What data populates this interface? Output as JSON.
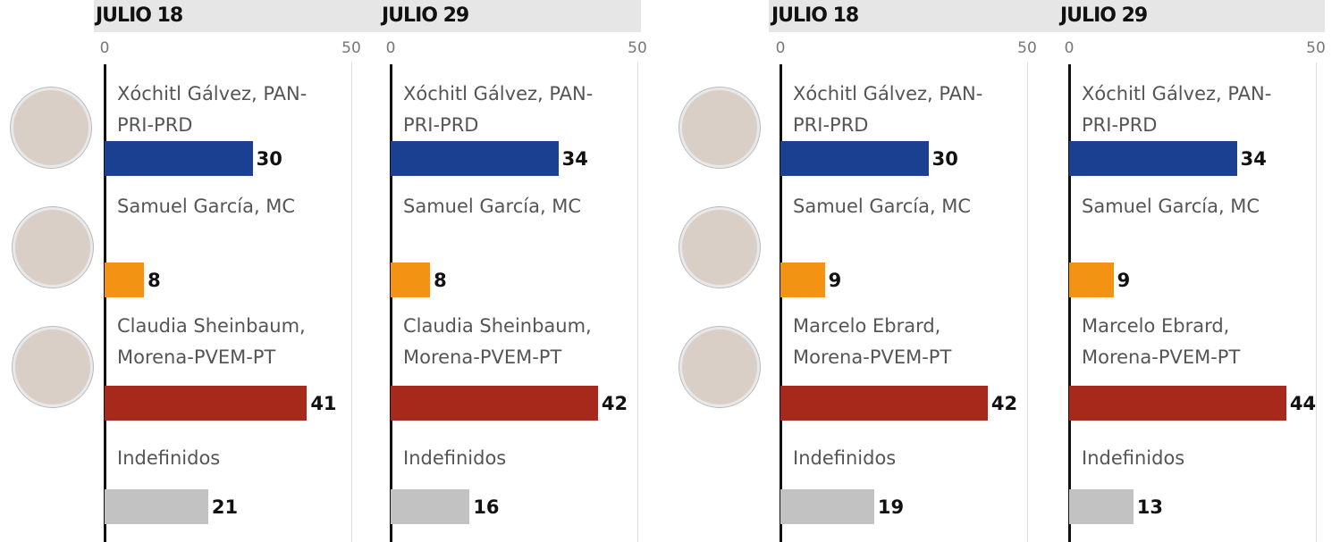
{
  "chart_data": [
    {
      "type": "bar",
      "orientation": "horizontal",
      "title": "JULIO 18",
      "categories": [
        "Xóchitl Gálvez, PAN-PRI-PRD",
        "Samuel García, MC",
        "Claudia Sheinbaum, Morena-PVEM-PT",
        "Indefinidos"
      ],
      "values": [
        30,
        8,
        41,
        21
      ],
      "colors": [
        "#1b3f91",
        "#f39314",
        "#a6291c",
        "#c2c2c2"
      ],
      "xlim": [
        0,
        50
      ],
      "xticks": [
        0,
        50
      ],
      "grid": true
    },
    {
      "type": "bar",
      "orientation": "horizontal",
      "title": "JULIO 29",
      "categories": [
        "Xóchitl Gálvez, PAN-PRI-PRD",
        "Samuel García, MC",
        "Claudia Sheinbaum, Morena-PVEM-PT",
        "Indefinidos"
      ],
      "values": [
        34,
        8,
        42,
        16
      ],
      "colors": [
        "#1b3f91",
        "#f39314",
        "#a6291c",
        "#c2c2c2"
      ],
      "xlim": [
        0,
        50
      ],
      "xticks": [
        0,
        50
      ],
      "grid": true
    },
    {
      "type": "bar",
      "orientation": "horizontal",
      "title": "JULIO 18",
      "categories": [
        "Xóchitl Gálvez, PAN-PRI-PRD",
        "Samuel García, MC",
        "Marcelo Ebrard, Morena-PVEM-PT",
        "Indefinidos"
      ],
      "values": [
        30,
        9,
        42,
        19
      ],
      "colors": [
        "#1b3f91",
        "#f39314",
        "#a6291c",
        "#c2c2c2"
      ],
      "xlim": [
        0,
        50
      ],
      "xticks": [
        0,
        50
      ],
      "grid": true
    },
    {
      "type": "bar",
      "orientation": "horizontal",
      "title": "JULIO 29",
      "categories": [
        "Xóchitl Gálvez, PAN-PRI-PRD",
        "Samuel García, MC",
        "Marcelo Ebrard, Morena-PVEM-PT",
        "Indefinidos"
      ],
      "values": [
        34,
        9,
        44,
        13
      ],
      "colors": [
        "#1b3f91",
        "#f39314",
        "#a6291c",
        "#c2c2c2"
      ],
      "xlim": [
        0,
        50
      ],
      "xticks": [
        0,
        50
      ],
      "grid": true
    }
  ]
}
